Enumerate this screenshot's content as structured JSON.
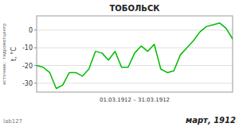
{
  "chart_data": {
    "type": "line",
    "title": "ТОБОЛЬСК",
    "ylabel": "t, °C",
    "xlabel": "01.03.1912 – 31.03.1912",
    "annotations": [
      "март, 1912",
      "lab127",
      "источник:  гидрометцентр"
    ],
    "x": [
      1,
      2,
      3,
      4,
      5,
      6,
      7,
      8,
      9,
      10,
      11,
      12,
      13,
      14,
      15,
      16,
      17,
      18,
      19,
      20,
      21,
      22,
      23,
      24,
      25,
      26,
      27,
      28,
      29,
      30,
      31
    ],
    "values": [
      -20,
      -21,
      -24,
      -33,
      -31,
      -24,
      -24,
      -26,
      -22,
      -12,
      -13,
      -17,
      -12,
      -21,
      -21,
      -13,
      -9,
      -12,
      -8,
      -22,
      -24,
      -23,
      -14,
      -10,
      -6,
      -1,
      2,
      3,
      4,
      1,
      -5
    ],
    "color": "#00bb00",
    "xlim": [
      1,
      31
    ],
    "ylim": [
      -35,
      8
    ],
    "yticks": [
      0,
      -10,
      -20,
      -30
    ],
    "grid": true,
    "tick_labels": "y"
  }
}
